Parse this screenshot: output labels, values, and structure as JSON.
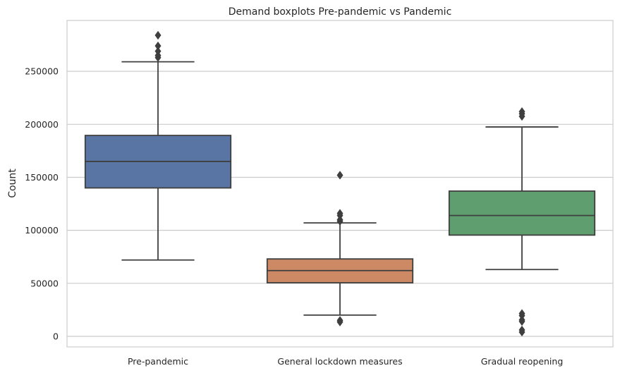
{
  "chart_data": {
    "type": "box",
    "title": "Demand boxplots Pre-pandemic vs Pandemic",
    "xlabel": "",
    "ylabel": "Count",
    "ylim": [
      -10000,
      298000
    ],
    "yticks": [
      0,
      50000,
      100000,
      150000,
      200000,
      250000
    ],
    "grid": "horizontal",
    "legend": "none",
    "categories": [
      "Pre-pandemic",
      "General lockdown measures",
      "Gradual reopening"
    ],
    "boxes": [
      {
        "category": "Pre-pandemic",
        "color": "#5875a4",
        "whisker_low": 72000,
        "q1": 140000,
        "median": 165000,
        "q3": 189500,
        "whisker_high": 259000,
        "outliers": [
          284000,
          274000,
          269000,
          265000,
          263000
        ]
      },
      {
        "category": "General lockdown measures",
        "color": "#cc8963",
        "whisker_low": 20000,
        "q1": 50500,
        "median": 62000,
        "q3": 73000,
        "whisker_high": 107000,
        "outliers": [
          152000,
          116000,
          114000,
          110000,
          108500,
          15000,
          13500
        ]
      },
      {
        "category": "Gradual reopening",
        "color": "#5f9e6e",
        "whisker_low": 63000,
        "q1": 95500,
        "median": 114000,
        "q3": 137000,
        "whisker_high": 197500,
        "outliers": [
          212000,
          210000,
          207500,
          21500,
          19500,
          15500,
          14000,
          6000,
          4000
        ]
      }
    ]
  }
}
